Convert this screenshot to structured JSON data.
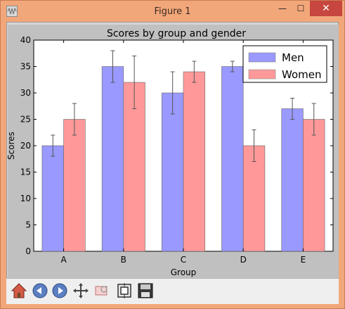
{
  "window": {
    "title": "Figure 1",
    "min_glyph": "—",
    "max_glyph": "☐",
    "close_glyph": "✕"
  },
  "toolbar": {
    "buttons": [
      {
        "name": "home",
        "icon": "home-icon"
      },
      {
        "name": "back",
        "icon": "back-arrow-icon"
      },
      {
        "name": "forward",
        "icon": "forward-arrow-icon"
      },
      {
        "name": "pan",
        "icon": "pan-cross-icon"
      },
      {
        "name": "zoom",
        "icon": "zoom-rect-icon"
      },
      {
        "name": "configure-subplots",
        "icon": "subplots-icon"
      },
      {
        "name": "save",
        "icon": "floppy-save-icon"
      }
    ]
  },
  "chart_data": {
    "type": "bar",
    "title": "Scores by group and gender",
    "xlabel": "Group",
    "ylabel": "Scores",
    "categories": [
      "A",
      "B",
      "C",
      "D",
      "E"
    ],
    "ylim": [
      0,
      40
    ],
    "yticks": [
      0,
      5,
      10,
      15,
      20,
      25,
      30,
      35,
      40
    ],
    "grid": false,
    "legend_position": "top-right",
    "series": [
      {
        "name": "Men",
        "values": [
          20,
          35,
          30,
          35,
          27
        ],
        "errors": [
          2,
          3,
          4,
          1,
          2
        ],
        "color": "#9999ff"
      },
      {
        "name": "Women",
        "values": [
          25,
          32,
          34,
          20,
          25
        ],
        "errors": [
          3,
          5,
          2,
          3,
          3
        ],
        "color": "#ff9999"
      }
    ]
  }
}
